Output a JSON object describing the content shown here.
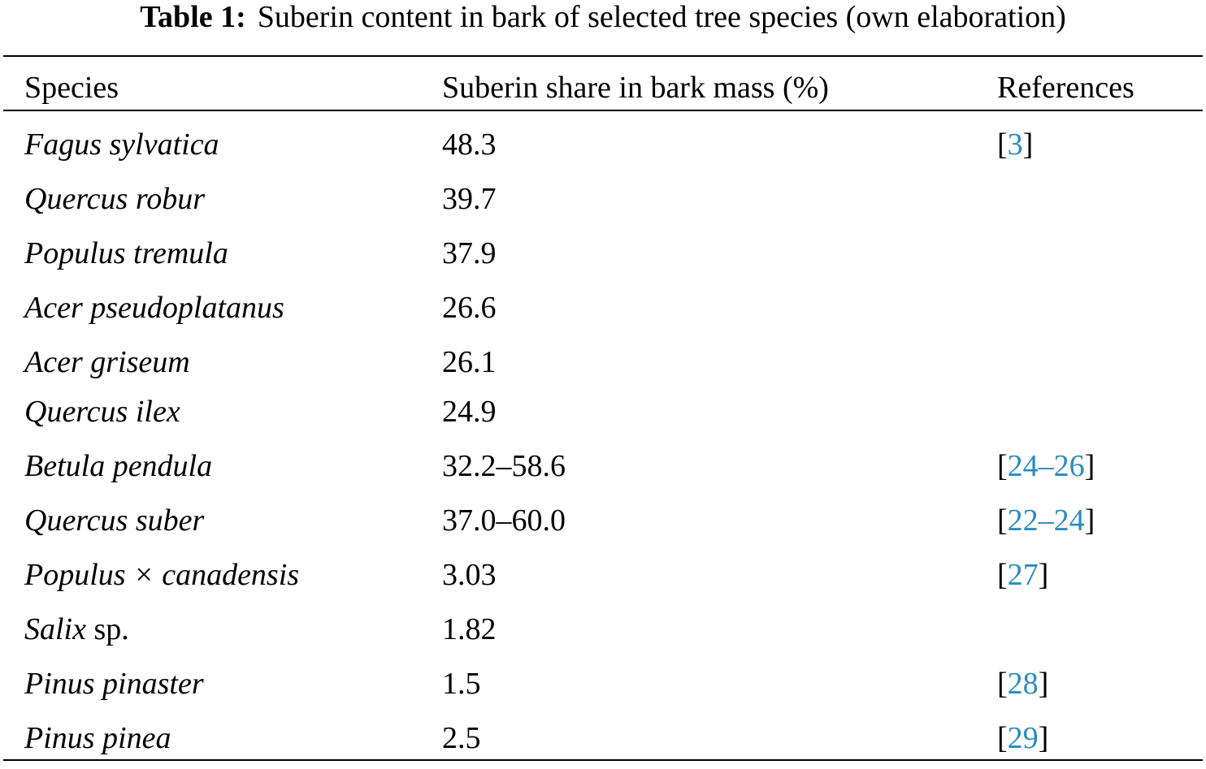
{
  "caption": {
    "label": "Table 1:",
    "text": "Suberin content in bark of selected tree species (own elaboration)"
  },
  "colors": {
    "reference_link": "#2a8bc0"
  },
  "table": {
    "headers": [
      "Species",
      "Suberin share in bark mass (%)",
      "References"
    ],
    "rows": [
      {
        "species": "Fagus sylvatica",
        "species_suffix": "",
        "value": "48.3",
        "ref_open": "[",
        "ref_a": "3",
        "ref_dash": "",
        "ref_b": "",
        "ref_close": "]"
      },
      {
        "species": "Quercus robur",
        "species_suffix": "",
        "value": "39.7",
        "ref_open": "",
        "ref_a": "",
        "ref_dash": "",
        "ref_b": "",
        "ref_close": ""
      },
      {
        "species": "Populus tremula",
        "species_suffix": "",
        "value": "37.9",
        "ref_open": "",
        "ref_a": "",
        "ref_dash": "",
        "ref_b": "",
        "ref_close": ""
      },
      {
        "species": "Acer pseudoplatanus",
        "species_suffix": "",
        "value": "26.6",
        "ref_open": "",
        "ref_a": "",
        "ref_dash": "",
        "ref_b": "",
        "ref_close": ""
      },
      {
        "species": "Acer griseum",
        "species_suffix": "",
        "value": "26.1",
        "ref_open": "",
        "ref_a": "",
        "ref_dash": "",
        "ref_b": "",
        "ref_close": ""
      },
      {
        "species": "Quercus ilex",
        "species_suffix": "",
        "value": "24.9",
        "ref_open": "",
        "ref_a": "",
        "ref_dash": "",
        "ref_b": "",
        "ref_close": ""
      },
      {
        "species": "Betula pendula",
        "species_suffix": "",
        "value": "32.2–58.6",
        "ref_open": "[",
        "ref_a": "24",
        "ref_dash": "–",
        "ref_b": "26",
        "ref_close": "]"
      },
      {
        "species": "Quercus suber",
        "species_suffix": "",
        "value": "37.0–60.0",
        "ref_open": "[",
        "ref_a": "22",
        "ref_dash": "–",
        "ref_b": "24",
        "ref_close": "]"
      },
      {
        "species": "Populus × canadensis",
        "species_suffix": "",
        "value": "3.03",
        "ref_open": "[",
        "ref_a": "27",
        "ref_dash": "",
        "ref_b": "",
        "ref_close": "]"
      },
      {
        "species": "Salix",
        "species_suffix": " sp.",
        "value": "1.82",
        "ref_open": "",
        "ref_a": "",
        "ref_dash": "",
        "ref_b": "",
        "ref_close": ""
      },
      {
        "species": "Pinus pinaster",
        "species_suffix": "",
        "value": "1.5",
        "ref_open": "[",
        "ref_a": "28",
        "ref_dash": "",
        "ref_b": "",
        "ref_close": "]"
      },
      {
        "species": "Pinus pinea",
        "species_suffix": "",
        "value": "2.5",
        "ref_open": "[",
        "ref_a": "29",
        "ref_dash": "",
        "ref_b": "",
        "ref_close": "]"
      }
    ]
  }
}
